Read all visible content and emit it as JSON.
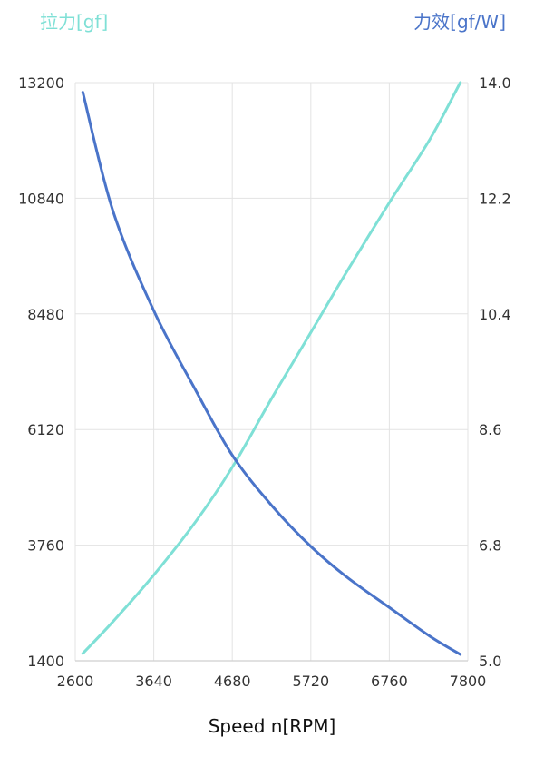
{
  "chart_data": {
    "type": "line",
    "left_axis_title": "拉力[gf]",
    "right_axis_title": "力效[gf/W]",
    "xlabel": "Speed n[RPM]",
    "x_ticks": [
      2600,
      3640,
      4680,
      5720,
      6760,
      7800
    ],
    "y_left_ticks": [
      1400,
      3760,
      6120,
      8480,
      10840,
      13200
    ],
    "y_right_ticks": [
      "5.0",
      "6.8",
      "8.6",
      "10.4",
      "12.2",
      "14.0"
    ],
    "xlim": [
      2600,
      7800
    ],
    "ylim_left": [
      1400,
      13200
    ],
    "ylim_right": [
      5.0,
      14.0
    ],
    "grid": true,
    "colors": {
      "thrust": "#7fe0d6",
      "efficiency": "#4a74c9",
      "grid": "#e3e3e3",
      "axis": "#cfcfcf",
      "tick_text": "#333333"
    },
    "series": [
      {
        "axis": "left",
        "color": "#7fe0d6",
        "x": [
          2700,
          3100,
          3640,
          4200,
          4680,
          5200,
          5720,
          6200,
          6760,
          7300,
          7700
        ],
        "y": [
          1550,
          2200,
          3150,
          4250,
          5350,
          6750,
          8100,
          9350,
          10750,
          12050,
          13200
        ]
      },
      {
        "axis": "right",
        "color": "#4a74c9",
        "x": [
          2700,
          3100,
          3640,
          4200,
          4680,
          5200,
          5720,
          6200,
          6760,
          7300,
          7700
        ],
        "y": [
          13.85,
          12.0,
          10.45,
          9.2,
          8.2,
          7.42,
          6.78,
          6.3,
          5.83,
          5.38,
          5.1
        ]
      }
    ]
  }
}
